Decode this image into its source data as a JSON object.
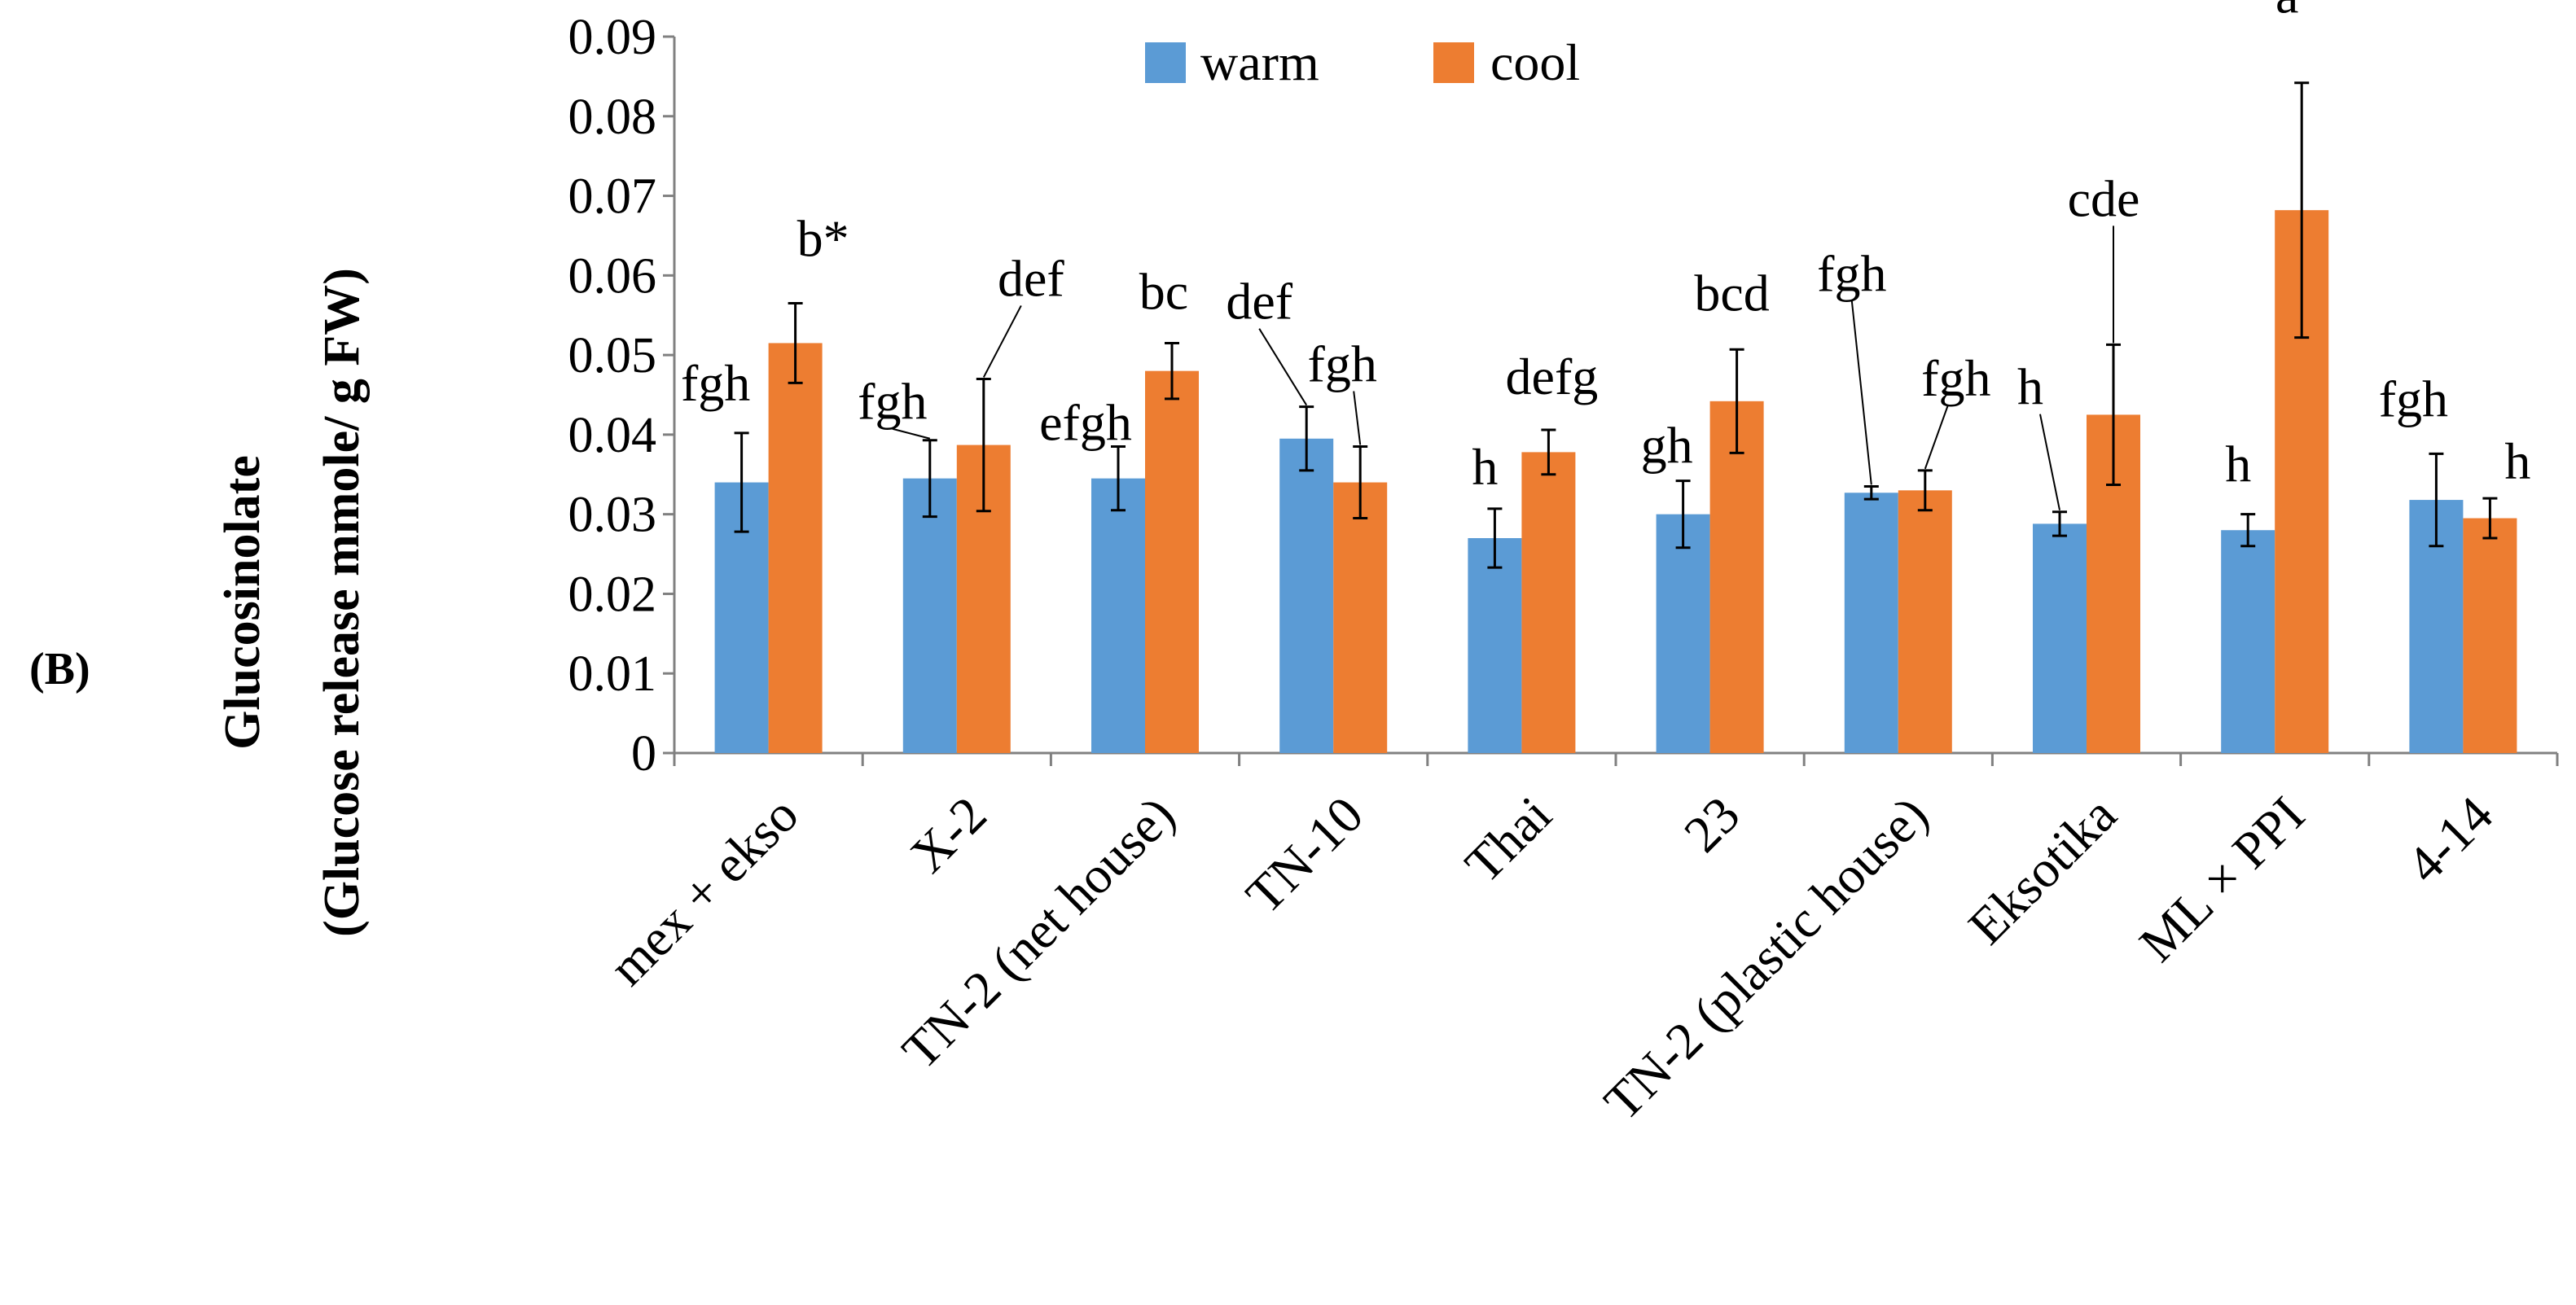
{
  "panel_label": "(B)",
  "colors": {
    "warm": "#5b9bd5",
    "cool": "#ed7d31",
    "axis": "#808080",
    "text": "#000000"
  },
  "chart_data": {
    "type": "bar",
    "title": "",
    "xlabel": "",
    "ylabel_line1": "Glucosinolate",
    "ylabel_line2": "(Glucose release mmole/ g FW)",
    "ylim": [
      0,
      0.09
    ],
    "yticks": [
      0,
      0.01,
      0.02,
      0.03,
      0.04,
      0.05,
      0.06,
      0.07,
      0.08,
      0.09
    ],
    "ytick_labels": [
      "0",
      "0.01",
      "0.02",
      "0.03",
      "0.04",
      "0.05",
      "0.06",
      "0.07",
      "0.08",
      "0.09"
    ],
    "legend_position": "top-center",
    "categories": [
      "mex + ekso",
      "X-2",
      "TN-2 (net house)",
      "TN-10",
      "Thai",
      "23",
      "TN-2 (plastic house)",
      "Eksotika",
      "ML × PPI",
      "4-14"
    ],
    "series": [
      {
        "name": "warm",
        "values": [
          0.034,
          0.0345,
          0.0345,
          0.0395,
          0.027,
          0.03,
          0.0327,
          0.0288,
          0.028,
          0.0318
        ],
        "errors": [
          0.0062,
          0.0048,
          0.004,
          0.004,
          0.0037,
          0.0042,
          0.0008,
          0.0015,
          0.002,
          0.0058
        ],
        "letters": [
          "fgh",
          "fgh",
          "efgh",
          "def",
          "h",
          "gh",
          "fgh",
          "h",
          "h",
          "fgh"
        ]
      },
      {
        "name": "cool",
        "values": [
          0.0515,
          0.0387,
          0.048,
          0.034,
          0.0378,
          0.0442,
          0.033,
          0.0425,
          0.0682,
          0.0295
        ],
        "errors": [
          0.005,
          0.0083,
          0.0035,
          0.0045,
          0.0028,
          0.0065,
          0.0025,
          0.0088,
          0.016,
          0.0025
        ],
        "letters": [
          "b*",
          "def",
          "bc",
          "fgh",
          "defg",
          "bcd",
          "fgh",
          "cde",
          "a",
          "h"
        ]
      }
    ]
  }
}
